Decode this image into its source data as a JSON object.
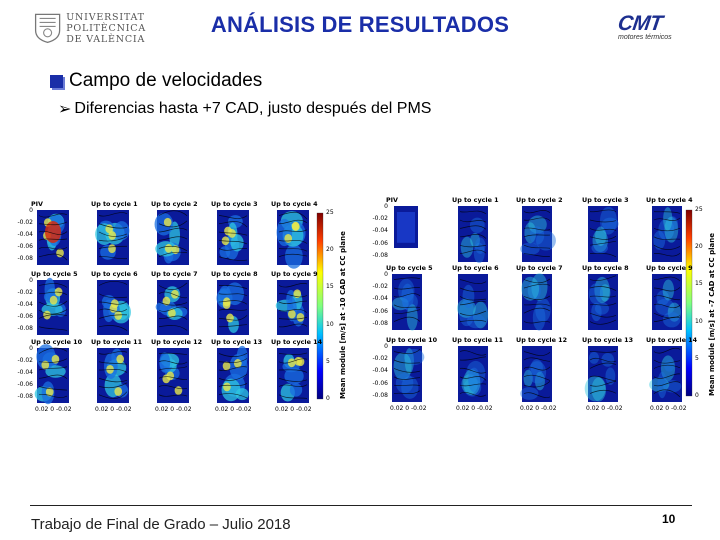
{
  "header": {
    "upv_logo_lines": [
      "UNIVERSITAT",
      "POLITÈCNICA",
      "DE VALÈNCIA"
    ],
    "title": "ANÁLISIS DE RESULTADOS",
    "cmt_logo_main": "CMT",
    "cmt_logo_sub": "motores térmicos"
  },
  "content": {
    "bullet_main": "Campo de velocidades",
    "bullet_sub": "Diferencias hasta +7 CAD, justo después del PMS"
  },
  "figure_left": {
    "panel_titles": [
      "PIV",
      "Up to cycle 1",
      "Up to cycle 2",
      "Up to cycle 3",
      "Up to cycle 4",
      "Up to cycle 5",
      "Up to cycle 6",
      "Up to cycle 7",
      "Up to cycle 8",
      "Up to cycle 9",
      "Up to cycle 10",
      "Up to cycle 11",
      "Up to cycle 12",
      "Up to cycle 13",
      "Up to cycle 14"
    ],
    "yticks": [
      "0",
      "-0.02",
      "-0.04",
      "-0.06",
      "-0.08"
    ],
    "yticks_bottom": [
      "0",
      "-0.02",
      "-0.04",
      "-0.06",
      "-0.08"
    ],
    "xtick_label": "0.02  0 -0.02",
    "colorbar_ticks": [
      "25",
      "20",
      "15",
      "10",
      "5",
      "0"
    ],
    "colorbar_label": "Mean module [m/s] at -10 CAD at CC plane"
  },
  "figure_right": {
    "panel_titles": [
      "PIV",
      "Up to cycle 1",
      "Up to cycle 2",
      "Up to cycle 3",
      "Up to cycle 4",
      "Up to cycle 5",
      "Up to cycle 6",
      "Up to cycle 7",
      "Up to cycle 8",
      "Up to cycle 9",
      "Up to cycle 10",
      "Up to cycle 11",
      "Up to cycle 12",
      "Up to cycle 13",
      "Up to cycle 14"
    ],
    "yticks": [
      "0",
      "-0.02",
      "-0.04",
      "-0.06",
      "-0.08"
    ],
    "yticks_bottom": [
      "0",
      "-0.02",
      "-0.04",
      "-0.06",
      "-0.08"
    ],
    "xtick_label": "0.02  0 -0.02",
    "colorbar_ticks": [
      "25",
      "20",
      "15",
      "10",
      "5",
      "0"
    ],
    "colorbar_label": "Mean module [m/s] at -7 CAD at CC plane"
  },
  "footer": {
    "text": "Trabajo de Final de Grado – Julio 2018",
    "page_number": "10"
  },
  "colors": {
    "title_blue": "#1a2ea8",
    "field_deep_blue": "#0a1a9a",
    "field_cyan": "#2fc7e0",
    "field_yellow": "#e8e84a"
  }
}
